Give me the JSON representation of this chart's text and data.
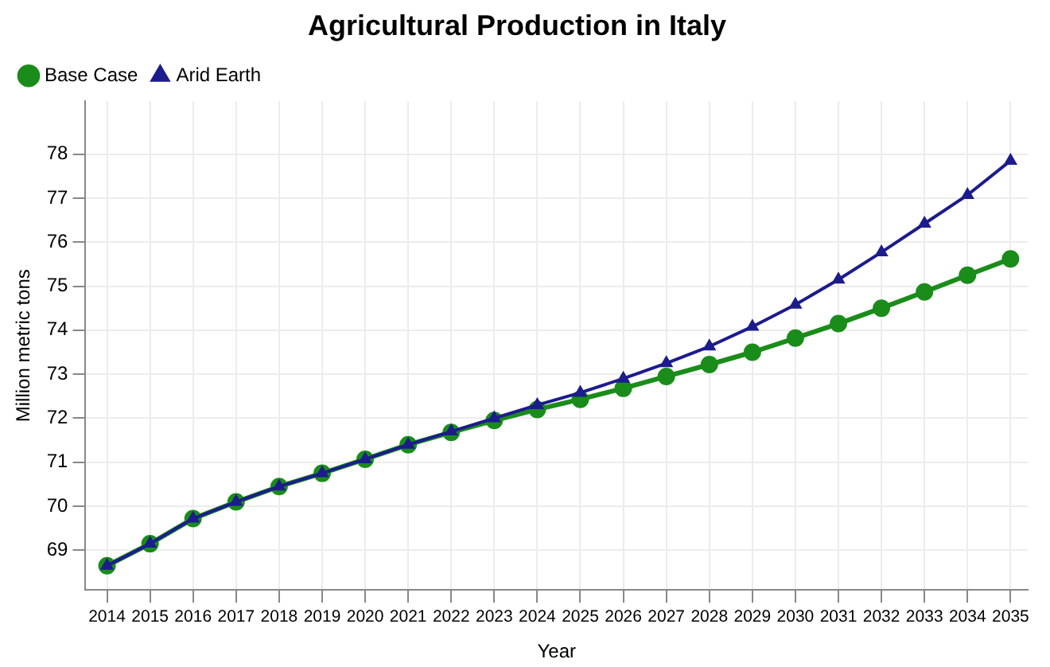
{
  "chart_data": {
    "type": "line",
    "title": "Agricultural Production in Italy",
    "xlabel": "Year",
    "ylabel": "Million metric tons",
    "x": [
      2014,
      2015,
      2016,
      2017,
      2018,
      2019,
      2020,
      2021,
      2022,
      2023,
      2024,
      2025,
      2026,
      2027,
      2028,
      2029,
      2030,
      2031,
      2032,
      2033,
      2034,
      2035
    ],
    "series": [
      {
        "name": "Base Case",
        "color": "#1a8c1a",
        "marker": "circle",
        "values": [
          68.65,
          69.15,
          69.72,
          70.1,
          70.45,
          70.75,
          71.07,
          71.4,
          71.68,
          71.95,
          72.2,
          72.43,
          72.68,
          72.95,
          73.22,
          73.5,
          73.82,
          74.15,
          74.5,
          74.87,
          75.25,
          75.62
        ]
      },
      {
        "name": "Arid Earth",
        "color": "#1c1c8c",
        "marker": "triangle",
        "values": [
          68.65,
          69.15,
          69.72,
          70.1,
          70.45,
          70.75,
          71.07,
          71.4,
          71.7,
          72.0,
          72.3,
          72.58,
          72.9,
          73.25,
          73.63,
          74.08,
          74.58,
          75.15,
          75.77,
          76.42,
          77.07,
          77.85
        ]
      }
    ],
    "xlim": [
      2013.5,
      2035.4
    ],
    "xticks": [
      2014,
      2015,
      2016,
      2017,
      2018,
      2019,
      2020,
      2021,
      2022,
      2023,
      2024,
      2025,
      2026,
      2027,
      2028,
      2029,
      2030,
      2031,
      2032,
      2033,
      2034,
      2035
    ],
    "ylim": [
      68.1,
      79.2
    ],
    "yticks": [
      69,
      70,
      71,
      72,
      73,
      74,
      75,
      76,
      77,
      78
    ],
    "grid": true,
    "legend": "top left",
    "line_style": "solid"
  }
}
